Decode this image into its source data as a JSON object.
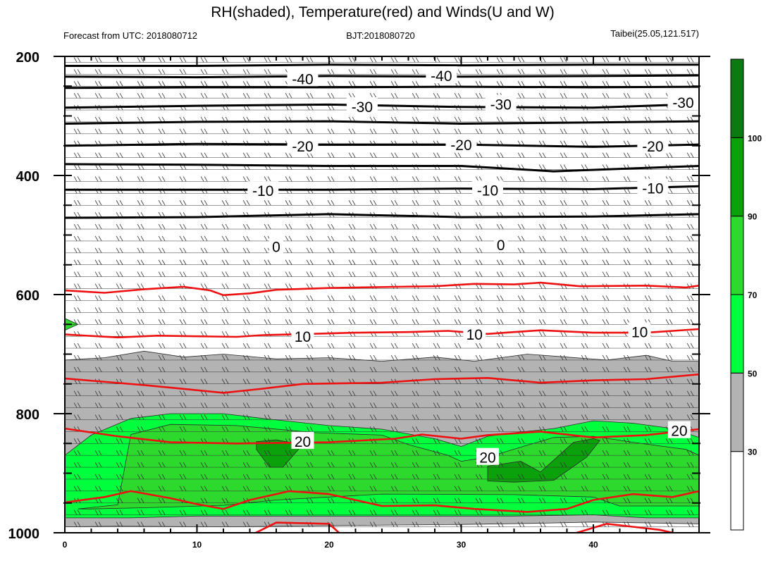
{
  "chart_data": {
    "type": "contour",
    "title": "RH(shaded), Temperature(red) and Winds(U and W)",
    "subtitle_left": "Forecast from UTC: 2018080712",
    "subtitle_center": "BJT:2018080720",
    "subtitle_right": "Taibei(25.05,121.517)",
    "xlim": [
      0,
      48
    ],
    "ylim": [
      1000,
      200
    ],
    "xticks": [
      "0",
      "10",
      "20",
      "30",
      "40"
    ],
    "yticks": [
      "200",
      "400",
      "600",
      "800",
      "1000"
    ],
    "colorbar": {
      "levels": [
        "30",
        "50",
        "70",
        "90",
        "100"
      ],
      "colors": [
        "#ffffff",
        "#b3b3b3",
        "#00ff3c",
        "#2ed92e",
        "#0ba10b",
        "#0b7a10"
      ]
    },
    "wind_levels_hpa": [
      210,
      230,
      250,
      270,
      290,
      310,
      330,
      350,
      370,
      390,
      410,
      430,
      450,
      470,
      490,
      510,
      530,
      550,
      570,
      590,
      610,
      630,
      650,
      670,
      690,
      710,
      730,
      750,
      770,
      790,
      810,
      830,
      850,
      870,
      890,
      910,
      930,
      950,
      970,
      990
    ],
    "rh_regions": [
      {
        "level": "50-70",
        "points": [
          [
            0,
            710
          ],
          [
            3,
            706
          ],
          [
            6,
            695
          ],
          [
            9,
            705
          ],
          [
            12,
            700
          ],
          [
            16,
            708
          ],
          [
            20,
            706
          ],
          [
            24,
            712
          ],
          [
            28,
            705
          ],
          [
            31,
            712
          ],
          [
            35,
            700
          ],
          [
            38,
            705
          ],
          [
            41,
            710
          ],
          [
            44,
            702
          ],
          [
            46,
            712
          ],
          [
            48,
            712
          ],
          [
            48,
            985
          ],
          [
            40,
            982
          ],
          [
            36,
            984
          ],
          [
            30,
            986
          ],
          [
            20,
            988
          ],
          [
            12,
            990
          ],
          [
            4,
            989
          ],
          [
            0,
            990
          ]
        ]
      },
      {
        "level": "70-90",
        "points": [
          [
            0,
            870
          ],
          [
            2,
            836
          ],
          [
            5,
            808
          ],
          [
            8,
            800
          ],
          [
            12,
            800
          ],
          [
            15,
            808
          ],
          [
            20,
            820
          ],
          [
            24,
            826
          ],
          [
            28,
            842
          ],
          [
            30,
            855
          ],
          [
            32,
            838
          ],
          [
            34,
            832
          ],
          [
            37,
            825
          ],
          [
            40,
            812
          ],
          [
            43,
            816
          ],
          [
            46,
            825
          ],
          [
            48,
            840
          ],
          [
            48,
            975
          ],
          [
            44,
            975
          ],
          [
            40,
            970
          ],
          [
            34,
            972
          ],
          [
            26,
            972
          ],
          [
            17,
            972
          ],
          [
            10,
            972
          ],
          [
            5,
            975
          ],
          [
            0,
            975
          ]
        ]
      },
      {
        "level": "90-100",
        "points": [
          [
            1,
            960
          ],
          [
            4,
            953
          ],
          [
            5,
            835
          ],
          [
            8,
            818
          ],
          [
            13,
            820
          ],
          [
            19,
            832
          ],
          [
            24,
            836
          ],
          [
            26,
            852
          ],
          [
            29,
            870
          ],
          [
            30,
            880
          ],
          [
            32,
            873
          ],
          [
            35,
            853
          ],
          [
            37,
            840
          ],
          [
            40,
            838
          ],
          [
            43,
            848
          ],
          [
            47,
            860
          ],
          [
            48,
            870
          ],
          [
            48,
            955
          ],
          [
            42,
            955
          ],
          [
            40,
            940
          ],
          [
            34,
            936
          ],
          [
            24,
            935
          ],
          [
            16,
            945
          ],
          [
            12,
            954
          ],
          [
            6,
            958
          ],
          [
            2,
            960
          ]
        ]
      },
      {
        "level": "90-100",
        "points": [
          [
            0,
            640
          ],
          [
            1,
            650
          ],
          [
            0,
            660
          ]
        ]
      },
      {
        "level": "100+",
        "points": [
          [
            14.5,
            847
          ],
          [
            16,
            844
          ],
          [
            18,
            852
          ],
          [
            16.5,
            890
          ],
          [
            15.5,
            890
          ],
          [
            14.5,
            860
          ]
        ]
      },
      {
        "level": "100+",
        "points": [
          [
            32,
            888
          ],
          [
            34.5,
            880
          ],
          [
            36,
            898
          ],
          [
            37,
            878
          ],
          [
            38.5,
            848
          ],
          [
            40,
            842
          ],
          [
            40.5,
            845
          ],
          [
            39.5,
            873
          ],
          [
            37,
            912
          ],
          [
            34,
            915
          ],
          [
            32,
            913
          ]
        ]
      }
    ],
    "temperature_isotherms": [
      {
        "points": [
          [
            0,
            593
          ],
          [
            3,
            597
          ],
          [
            6,
            591
          ],
          [
            9,
            587
          ],
          [
            11,
            593
          ],
          [
            12,
            601
          ],
          [
            14,
            598
          ],
          [
            16,
            592
          ],
          [
            20,
            589
          ],
          [
            25,
            587
          ],
          [
            28,
            586
          ],
          [
            31,
            582
          ],
          [
            34,
            583
          ],
          [
            36,
            580
          ],
          [
            39,
            586
          ],
          [
            44,
            585
          ],
          [
            47,
            588
          ],
          [
            48,
            585
          ]
        ]
      },
      {
        "label": "10",
        "points": [
          [
            0,
            667
          ],
          [
            4,
            672
          ],
          [
            7,
            669
          ],
          [
            13,
            671
          ],
          [
            15,
            668
          ],
          [
            17,
            667
          ],
          [
            22,
            664
          ],
          [
            26,
            663
          ],
          [
            29,
            661
          ],
          [
            32,
            666
          ],
          [
            34,
            663
          ],
          [
            36,
            660
          ],
          [
            40,
            664
          ],
          [
            44,
            664
          ],
          [
            48,
            658
          ]
        ]
      },
      {
        "points": [
          [
            0,
            741
          ],
          [
            6,
            752
          ],
          [
            12,
            765
          ],
          [
            15,
            758
          ],
          [
            18,
            750
          ],
          [
            24,
            748
          ],
          [
            28,
            742
          ],
          [
            32,
            740
          ],
          [
            36,
            748
          ],
          [
            40,
            744
          ],
          [
            44,
            742
          ],
          [
            48,
            734
          ]
        ]
      },
      {
        "label": "20",
        "points": [
          [
            0,
            825
          ],
          [
            4,
            838
          ],
          [
            8,
            848
          ],
          [
            13,
            850
          ],
          [
            20,
            848
          ],
          [
            25,
            842
          ],
          [
            27,
            835
          ],
          [
            30,
            842
          ],
          [
            32,
            836
          ],
          [
            36,
            830
          ],
          [
            40,
            840
          ],
          [
            44,
            836
          ],
          [
            48,
            826
          ]
        ]
      },
      {
        "points": [
          [
            0,
            949
          ],
          [
            3,
            940
          ],
          [
            5,
            930
          ],
          [
            8,
            942
          ],
          [
            10,
            952
          ],
          [
            12,
            960
          ],
          [
            14,
            945
          ],
          [
            17,
            930
          ],
          [
            20,
            935
          ],
          [
            24,
            955
          ],
          [
            28,
            954
          ],
          [
            31,
            960
          ],
          [
            35,
            965
          ],
          [
            38,
            960
          ],
          [
            40,
            945
          ],
          [
            43,
            935
          ],
          [
            46,
            940
          ],
          [
            48,
            930
          ]
        ]
      },
      {
        "points": [
          [
            14,
            1005
          ],
          [
            16,
            983
          ],
          [
            20,
            985
          ],
          [
            21,
            1005
          ]
        ]
      },
      {
        "points": [
          [
            38,
            1005
          ],
          [
            41,
            985
          ],
          [
            45,
            995
          ],
          [
            47,
            1005
          ]
        ]
      }
    ],
    "black_isotherms": [
      {
        "points": [
          [
            0,
            216
          ],
          [
            10,
            216
          ],
          [
            20,
            214
          ],
          [
            30,
            215
          ],
          [
            40,
            214
          ],
          [
            48,
            214
          ]
        ]
      },
      {
        "label": "-40",
        "points": [
          [
            0,
            234
          ],
          [
            10,
            235
          ],
          [
            20,
            233
          ],
          [
            30,
            234
          ],
          [
            40,
            233
          ],
          [
            48,
            232
          ]
        ]
      },
      {
        "points": [
          [
            0,
            253
          ],
          [
            10,
            252
          ],
          [
            20,
            252
          ],
          [
            30,
            251
          ],
          [
            40,
            252
          ],
          [
            48,
            251
          ]
        ]
      },
      {
        "label": "-30",
        "points": [
          [
            0,
            286
          ],
          [
            10,
            283
          ],
          [
            20,
            281
          ],
          [
            30,
            285
          ],
          [
            40,
            286
          ],
          [
            48,
            280
          ]
        ]
      },
      {
        "points": [
          [
            0,
            313
          ],
          [
            10,
            310
          ],
          [
            20,
            309
          ],
          [
            30,
            313
          ],
          [
            40,
            311
          ],
          [
            48,
            309
          ]
        ]
      },
      {
        "label": "-20",
        "points": [
          [
            0,
            350
          ],
          [
            10,
            347
          ],
          [
            20,
            348
          ],
          [
            30,
            348
          ],
          [
            40,
            352
          ],
          [
            48,
            348
          ]
        ]
      },
      {
        "points": [
          [
            0,
            381
          ],
          [
            10,
            382
          ],
          [
            20,
            384
          ],
          [
            30,
            384
          ],
          [
            37,
            393
          ],
          [
            48,
            384
          ]
        ]
      },
      {
        "label": "-10",
        "points": [
          [
            0,
            424
          ],
          [
            10,
            424
          ],
          [
            20,
            424
          ],
          [
            30,
            422
          ],
          [
            40,
            423
          ],
          [
            48,
            418
          ]
        ]
      },
      {
        "points": [
          [
            0,
            471
          ],
          [
            10,
            470
          ],
          [
            20,
            465
          ],
          [
            30,
            470
          ],
          [
            40,
            469
          ],
          [
            48,
            465
          ]
        ]
      }
    ],
    "contour_labels": [
      {
        "text": "-40",
        "x": 18,
        "y": 237
      },
      {
        "text": "-40",
        "x": 28.5,
        "y": 232
      },
      {
        "text": "-30",
        "x": 22.5,
        "y": 284
      },
      {
        "text": "-30",
        "x": 33,
        "y": 280
      },
      {
        "text": "-30",
        "x": 46.8,
        "y": 277
      },
      {
        "text": "-20",
        "x": 18,
        "y": 350
      },
      {
        "text": "-20",
        "x": 30,
        "y": 348
      },
      {
        "text": "-20",
        "x": 44.5,
        "y": 350
      },
      {
        "text": "-10",
        "x": 15,
        "y": 425
      },
      {
        "text": "-10",
        "x": 32,
        "y": 424
      },
      {
        "text": "-10",
        "x": 44.5,
        "y": 421
      },
      {
        "text": "0",
        "x": 16,
        "y": 519
      },
      {
        "text": "0",
        "x": 33,
        "y": 516
      },
      {
        "text": "10",
        "x": 18,
        "y": 670
      },
      {
        "text": "10",
        "x": 31,
        "y": 666
      },
      {
        "text": "10",
        "x": 43.5,
        "y": 662
      },
      {
        "text": "20",
        "x": 18,
        "y": 846
      },
      {
        "text": "20",
        "x": 32,
        "y": 873
      },
      {
        "text": "20",
        "x": 46.5,
        "y": 828
      }
    ]
  }
}
